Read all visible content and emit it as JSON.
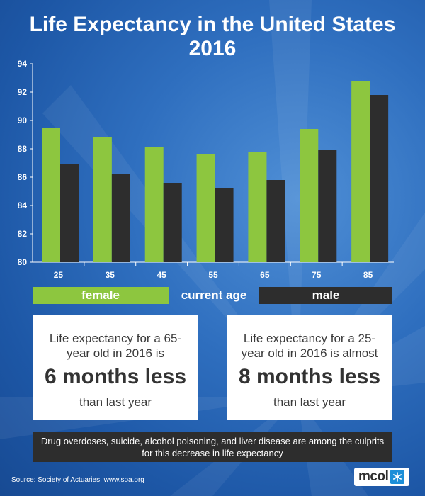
{
  "title_line1": "Life Expectancy in the United States",
  "title_line2": "2016",
  "legend": {
    "female": "female",
    "xlabel": "current age",
    "male": "male"
  },
  "cards": {
    "left": {
      "text": "Life expectancy for a 65-year old in 2016 is",
      "big": "6 months less",
      "sub": "than last year"
    },
    "right": {
      "text": "Life expectancy for a 25-year old in 2016 is almost",
      "big": "8 months less",
      "sub": "than last year"
    }
  },
  "footer_note": "Drug overdoses, suicide, alcohol poisoning, and liver disease are among the culprits for this decrease in life expectancy",
  "source": "Source:  Society of Actuaries, www.soa.org",
  "logo": "mcol",
  "colors": {
    "female": "#8dc63f",
    "male": "#2d2d2d",
    "background": "#2f6fbf"
  },
  "chart_data": {
    "type": "bar",
    "title": "Life Expectancy in the United States 2016",
    "categories": [
      "25",
      "35",
      "45",
      "55",
      "65",
      "75",
      "85"
    ],
    "series": [
      {
        "name": "female",
        "values": [
          89.5,
          88.8,
          88.1,
          87.6,
          87.8,
          89.4,
          92.8
        ]
      },
      {
        "name": "male",
        "values": [
          86.9,
          86.2,
          85.6,
          85.2,
          85.8,
          87.9,
          91.8
        ]
      }
    ],
    "xlabel": "current age",
    "ylabel": "",
    "ylim": [
      80,
      94
    ],
    "yticks": [
      "80",
      "82",
      "84",
      "86",
      "88",
      "90",
      "92",
      "94"
    ],
    "grid": false,
    "legend": "bottom"
  }
}
